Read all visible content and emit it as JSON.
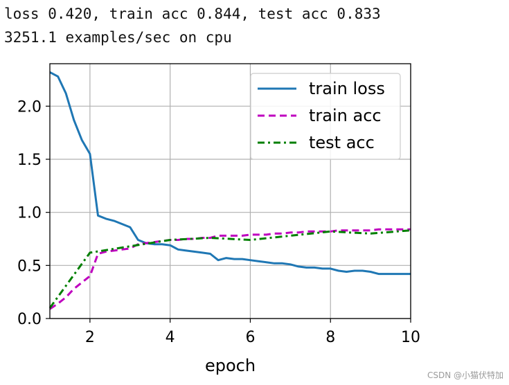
{
  "log": {
    "line1": "loss 0.420, train acc 0.844, test acc 0.833",
    "line2": "3251.1 examples/sec on cpu"
  },
  "watermark": "CSDN @小猫伏特加",
  "chart_data": {
    "type": "line",
    "xlabel": "epoch",
    "ylabel": "",
    "xlim": [
      1,
      10
    ],
    "ylim": [
      0,
      2.4
    ],
    "xticks": [
      2,
      4,
      6,
      8,
      10
    ],
    "yticks": [
      0.0,
      0.5,
      1.0,
      1.5,
      2.0
    ],
    "grid": true,
    "legend_position": "top-right",
    "series": [
      {
        "name": "train loss",
        "color": "#1f77b4",
        "style": "solid",
        "x": [
          1.0,
          1.2,
          1.4,
          1.6,
          1.8,
          2.0,
          2.2,
          2.4,
          2.6,
          2.8,
          3.0,
          3.2,
          3.4,
          3.6,
          3.8,
          4.0,
          4.2,
          4.4,
          4.6,
          4.8,
          5.0,
          5.2,
          5.4,
          5.6,
          5.8,
          6.0,
          6.2,
          6.4,
          6.6,
          6.8,
          7.0,
          7.2,
          7.4,
          7.6,
          7.8,
          8.0,
          8.2,
          8.4,
          8.6,
          8.8,
          9.0,
          9.2,
          9.4,
          9.6,
          9.8,
          10.0
        ],
        "y": [
          2.32,
          2.28,
          2.12,
          1.87,
          1.68,
          1.55,
          0.97,
          0.94,
          0.92,
          0.89,
          0.86,
          0.74,
          0.71,
          0.7,
          0.7,
          0.69,
          0.65,
          0.64,
          0.63,
          0.62,
          0.61,
          0.55,
          0.57,
          0.56,
          0.56,
          0.55,
          0.54,
          0.53,
          0.52,
          0.52,
          0.51,
          0.49,
          0.48,
          0.48,
          0.47,
          0.47,
          0.45,
          0.44,
          0.45,
          0.45,
          0.44,
          0.42,
          0.42,
          0.42,
          0.42,
          0.42
        ]
      },
      {
        "name": "train acc",
        "color": "#bf00bf",
        "style": "dashed",
        "x": [
          1.0,
          1.2,
          1.4,
          1.6,
          1.8,
          2.0,
          2.2,
          2.4,
          2.6,
          2.8,
          3.0,
          3.2,
          3.4,
          3.6,
          3.8,
          4.0,
          4.2,
          4.4,
          4.6,
          4.8,
          5.0,
          5.2,
          5.4,
          5.6,
          5.8,
          6.0,
          6.2,
          6.4,
          6.6,
          6.8,
          7.0,
          7.2,
          7.4,
          7.6,
          7.8,
          8.0,
          8.2,
          8.4,
          8.6,
          8.8,
          9.0,
          9.2,
          9.4,
          9.6,
          9.8,
          10.0
        ],
        "y": [
          0.09,
          0.14,
          0.2,
          0.28,
          0.34,
          0.4,
          0.61,
          0.63,
          0.64,
          0.65,
          0.66,
          0.7,
          0.71,
          0.72,
          0.73,
          0.74,
          0.74,
          0.75,
          0.75,
          0.76,
          0.76,
          0.78,
          0.78,
          0.78,
          0.78,
          0.79,
          0.79,
          0.79,
          0.8,
          0.8,
          0.81,
          0.81,
          0.82,
          0.82,
          0.82,
          0.82,
          0.83,
          0.83,
          0.83,
          0.83,
          0.83,
          0.84,
          0.84,
          0.84,
          0.84,
          0.84
        ]
      },
      {
        "name": "test acc",
        "color": "#007f00",
        "style": "dashdot",
        "x": [
          1.0,
          2.0,
          3.0,
          4.0,
          5.0,
          6.0,
          7.0,
          8.0,
          9.0,
          10.0
        ],
        "y": [
          0.1,
          0.62,
          0.68,
          0.74,
          0.76,
          0.74,
          0.78,
          0.82,
          0.8,
          0.83
        ]
      }
    ]
  }
}
